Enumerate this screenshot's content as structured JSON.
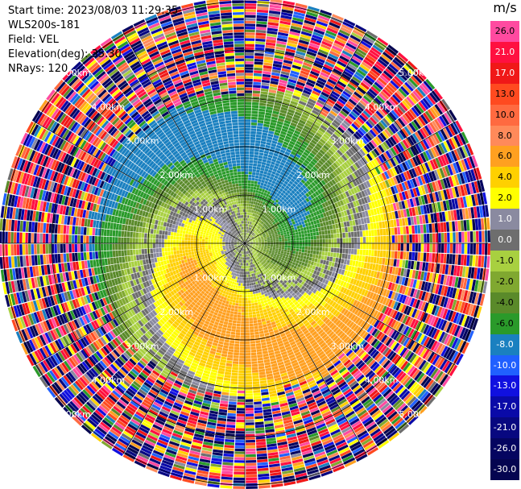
{
  "info": {
    "start_time": "Start time: 2023/08/03 11:29:35",
    "site": "WLS200s-181",
    "field": "Field: VEL",
    "elevation": "Elevation(deg): 35.30",
    "nrays": "NRays: 120"
  },
  "colorbar": {
    "unit": "m/s",
    "levels": [
      {
        "label": "26.0",
        "color": "#ff4aa0"
      },
      {
        "label": "21.0",
        "color": "#ff1040"
      },
      {
        "label": "17.0",
        "color": "#f01818"
      },
      {
        "label": "13.0",
        "color": "#ff4a20"
      },
      {
        "label": "10.0",
        "color": "#ff6a40"
      },
      {
        "label": "8.0",
        "color": "#ff8a5a"
      },
      {
        "label": "6.0",
        "color": "#ffa020"
      },
      {
        "label": "4.0",
        "color": "#ffd000"
      },
      {
        "label": "2.0",
        "color": "#ffff00"
      },
      {
        "label": "1.0",
        "color": "#8a8aa0"
      },
      {
        "label": "0.0",
        "color": "#6e6e6e"
      },
      {
        "label": "-1.0",
        "color": "#a8d040"
      },
      {
        "label": "-2.0",
        "color": "#80a830"
      },
      {
        "label": "-4.0",
        "color": "#5a8a2a"
      },
      {
        "label": "-6.0",
        "color": "#2a9a2a"
      },
      {
        "label": "-8.0",
        "color": "#1a80c0"
      },
      {
        "label": "-10.0",
        "color": "#2060ff"
      },
      {
        "label": "-13.0",
        "color": "#1010e0"
      },
      {
        "label": "-17.0",
        "color": "#0a0aa8"
      },
      {
        "label": "-21.0",
        "color": "#080880"
      },
      {
        "label": "-26.0",
        "color": "#050560"
      },
      {
        "label": "-30.0",
        "color": "#050550"
      }
    ]
  },
  "chart_data": {
    "type": "heatmap",
    "projection": "polar PPI",
    "field": "VEL",
    "units": "m/s",
    "range_rings_km": [
      1.0,
      2.0,
      3.0,
      4.0,
      5.0
    ],
    "ring_labels": [
      "1.00km",
      "2.00km",
      "3.00km",
      "4.00km",
      "5.00km"
    ],
    "radial_lines_deg": [
      0,
      30,
      60,
      90,
      120,
      150,
      180,
      210,
      240,
      270,
      300,
      330
    ],
    "nrays": 120,
    "velocity_pattern": {
      "toward_positive_sector_azimuth_deg": 290,
      "peak_positive_ms": 8,
      "peak_negative_ms": -8,
      "noise_beyond_km": 3.0
    }
  }
}
